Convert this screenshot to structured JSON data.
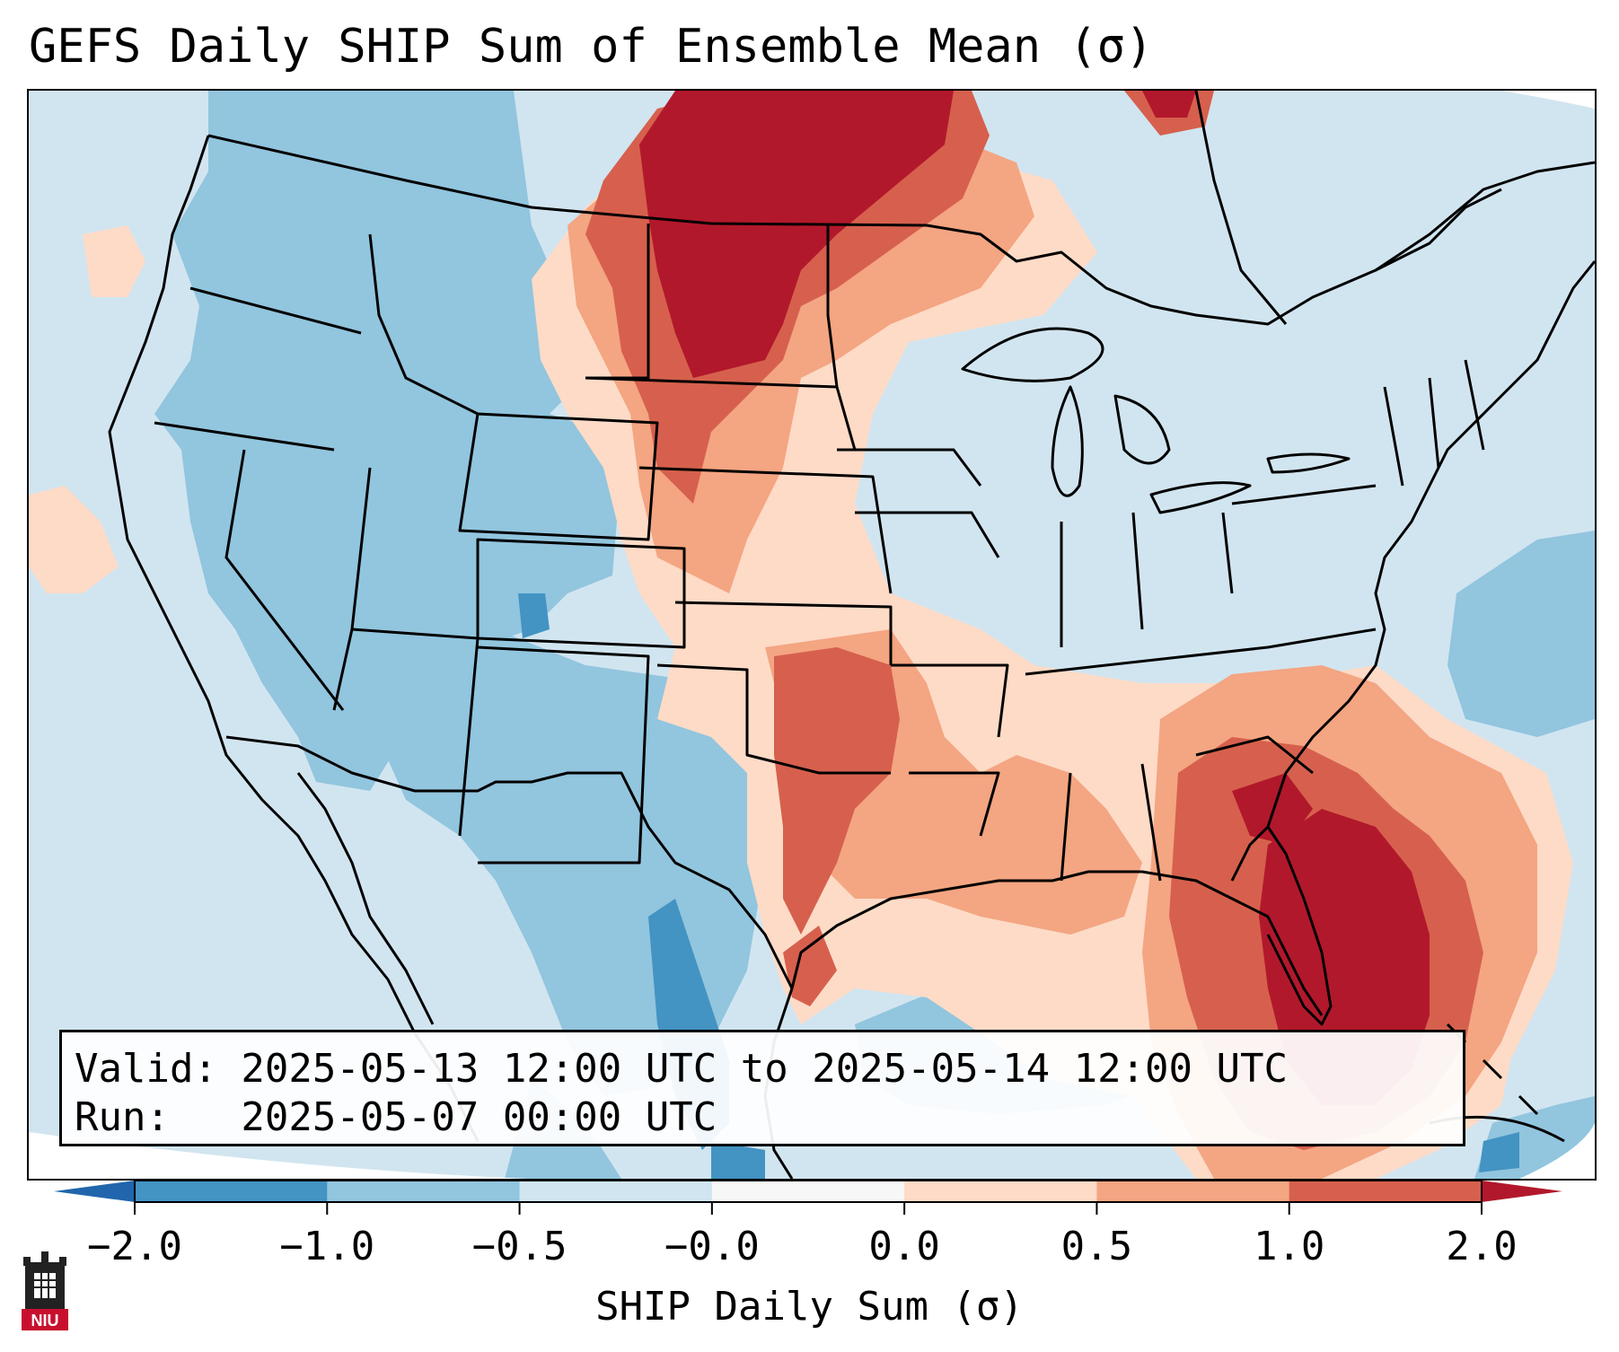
{
  "title": "GEFS Daily SHIP Sum of Ensemble Mean (σ)",
  "info": {
    "valid_line": "Valid: 2025-05-13 12:00 UTC to 2025-05-14 12:00 UTC",
    "run_line": "Run:   2025-05-07 00:00 UTC"
  },
  "colorbar": {
    "label": "SHIP Daily Sum (σ)",
    "ticks": [
      "−2.0",
      "−1.0",
      "−0.5",
      "−0.0",
      "0.0",
      "0.5",
      "1.0",
      "2.0"
    ],
    "bins": [
      {
        "color": "#4393c3"
      },
      {
        "color": "#92c5de"
      },
      {
        "color": "#d1e5f0"
      },
      {
        "color": "#f7f7f7"
      },
      {
        "color": "#fddbc7"
      },
      {
        "color": "#f4a582"
      },
      {
        "color": "#d6604d"
      }
    ],
    "under_color": "#2166ac",
    "over_color": "#b2182b"
  },
  "logo": {
    "text": "NIU",
    "color": "#c8102e"
  }
}
